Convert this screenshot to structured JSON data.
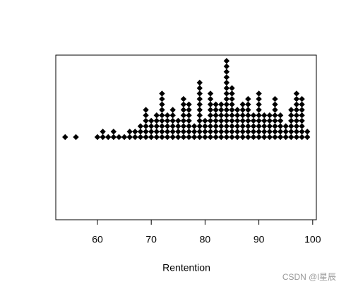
{
  "chart_data": {
    "type": "dotplot",
    "xlabel": "Rentention",
    "color": "#000000",
    "x": [
      54,
      56,
      60,
      61,
      62,
      63,
      64,
      65,
      66,
      67,
      68,
      69,
      70,
      71,
      72,
      73,
      74,
      75,
      76,
      77,
      78,
      79,
      80,
      81,
      82,
      83,
      84,
      85,
      86,
      87,
      88,
      89,
      90,
      91,
      92,
      93,
      94,
      95,
      96,
      97,
      98,
      99
    ],
    "values": [
      1,
      1,
      1,
      2,
      1,
      2,
      1,
      1,
      2,
      2,
      3,
      6,
      4,
      5,
      9,
      5,
      6,
      4,
      8,
      7,
      3,
      11,
      4,
      9,
      7,
      7,
      15,
      10,
      6,
      7,
      8,
      5,
      9,
      5,
      5,
      8,
      5,
      3,
      6,
      9,
      8,
      2
    ],
    "xlim": [
      52.26,
      100.68
    ],
    "xticks": [
      60,
      70,
      80,
      90,
      100
    ]
  },
  "watermark": "CSDN @l星辰"
}
